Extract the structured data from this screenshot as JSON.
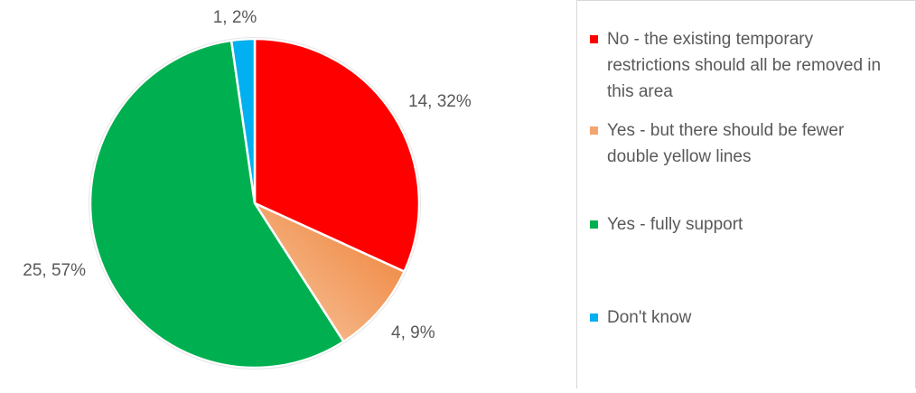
{
  "chart_data": {
    "type": "pie",
    "slices": [
      {
        "label": "No - the existing temporary restrictions should all be removed in this area",
        "value": 14,
        "percent": "32%",
        "data_label": "14, 32%",
        "color": "#ff0000"
      },
      {
        "label": "Yes - but there should be fewer double yellow lines",
        "value": 4,
        "percent": "9%",
        "data_label": "4, 9%",
        "color": "#f4a46d"
      },
      {
        "label": "Yes - fully support",
        "value": 25,
        "percent": "57%",
        "data_label": "25, 57%",
        "color": "#00b050"
      },
      {
        "label": "Don't know",
        "value": 1,
        "percent": "2%",
        "data_label": "1, 2%",
        "color": "#00b0f0"
      }
    ],
    "legend_position": "right"
  }
}
